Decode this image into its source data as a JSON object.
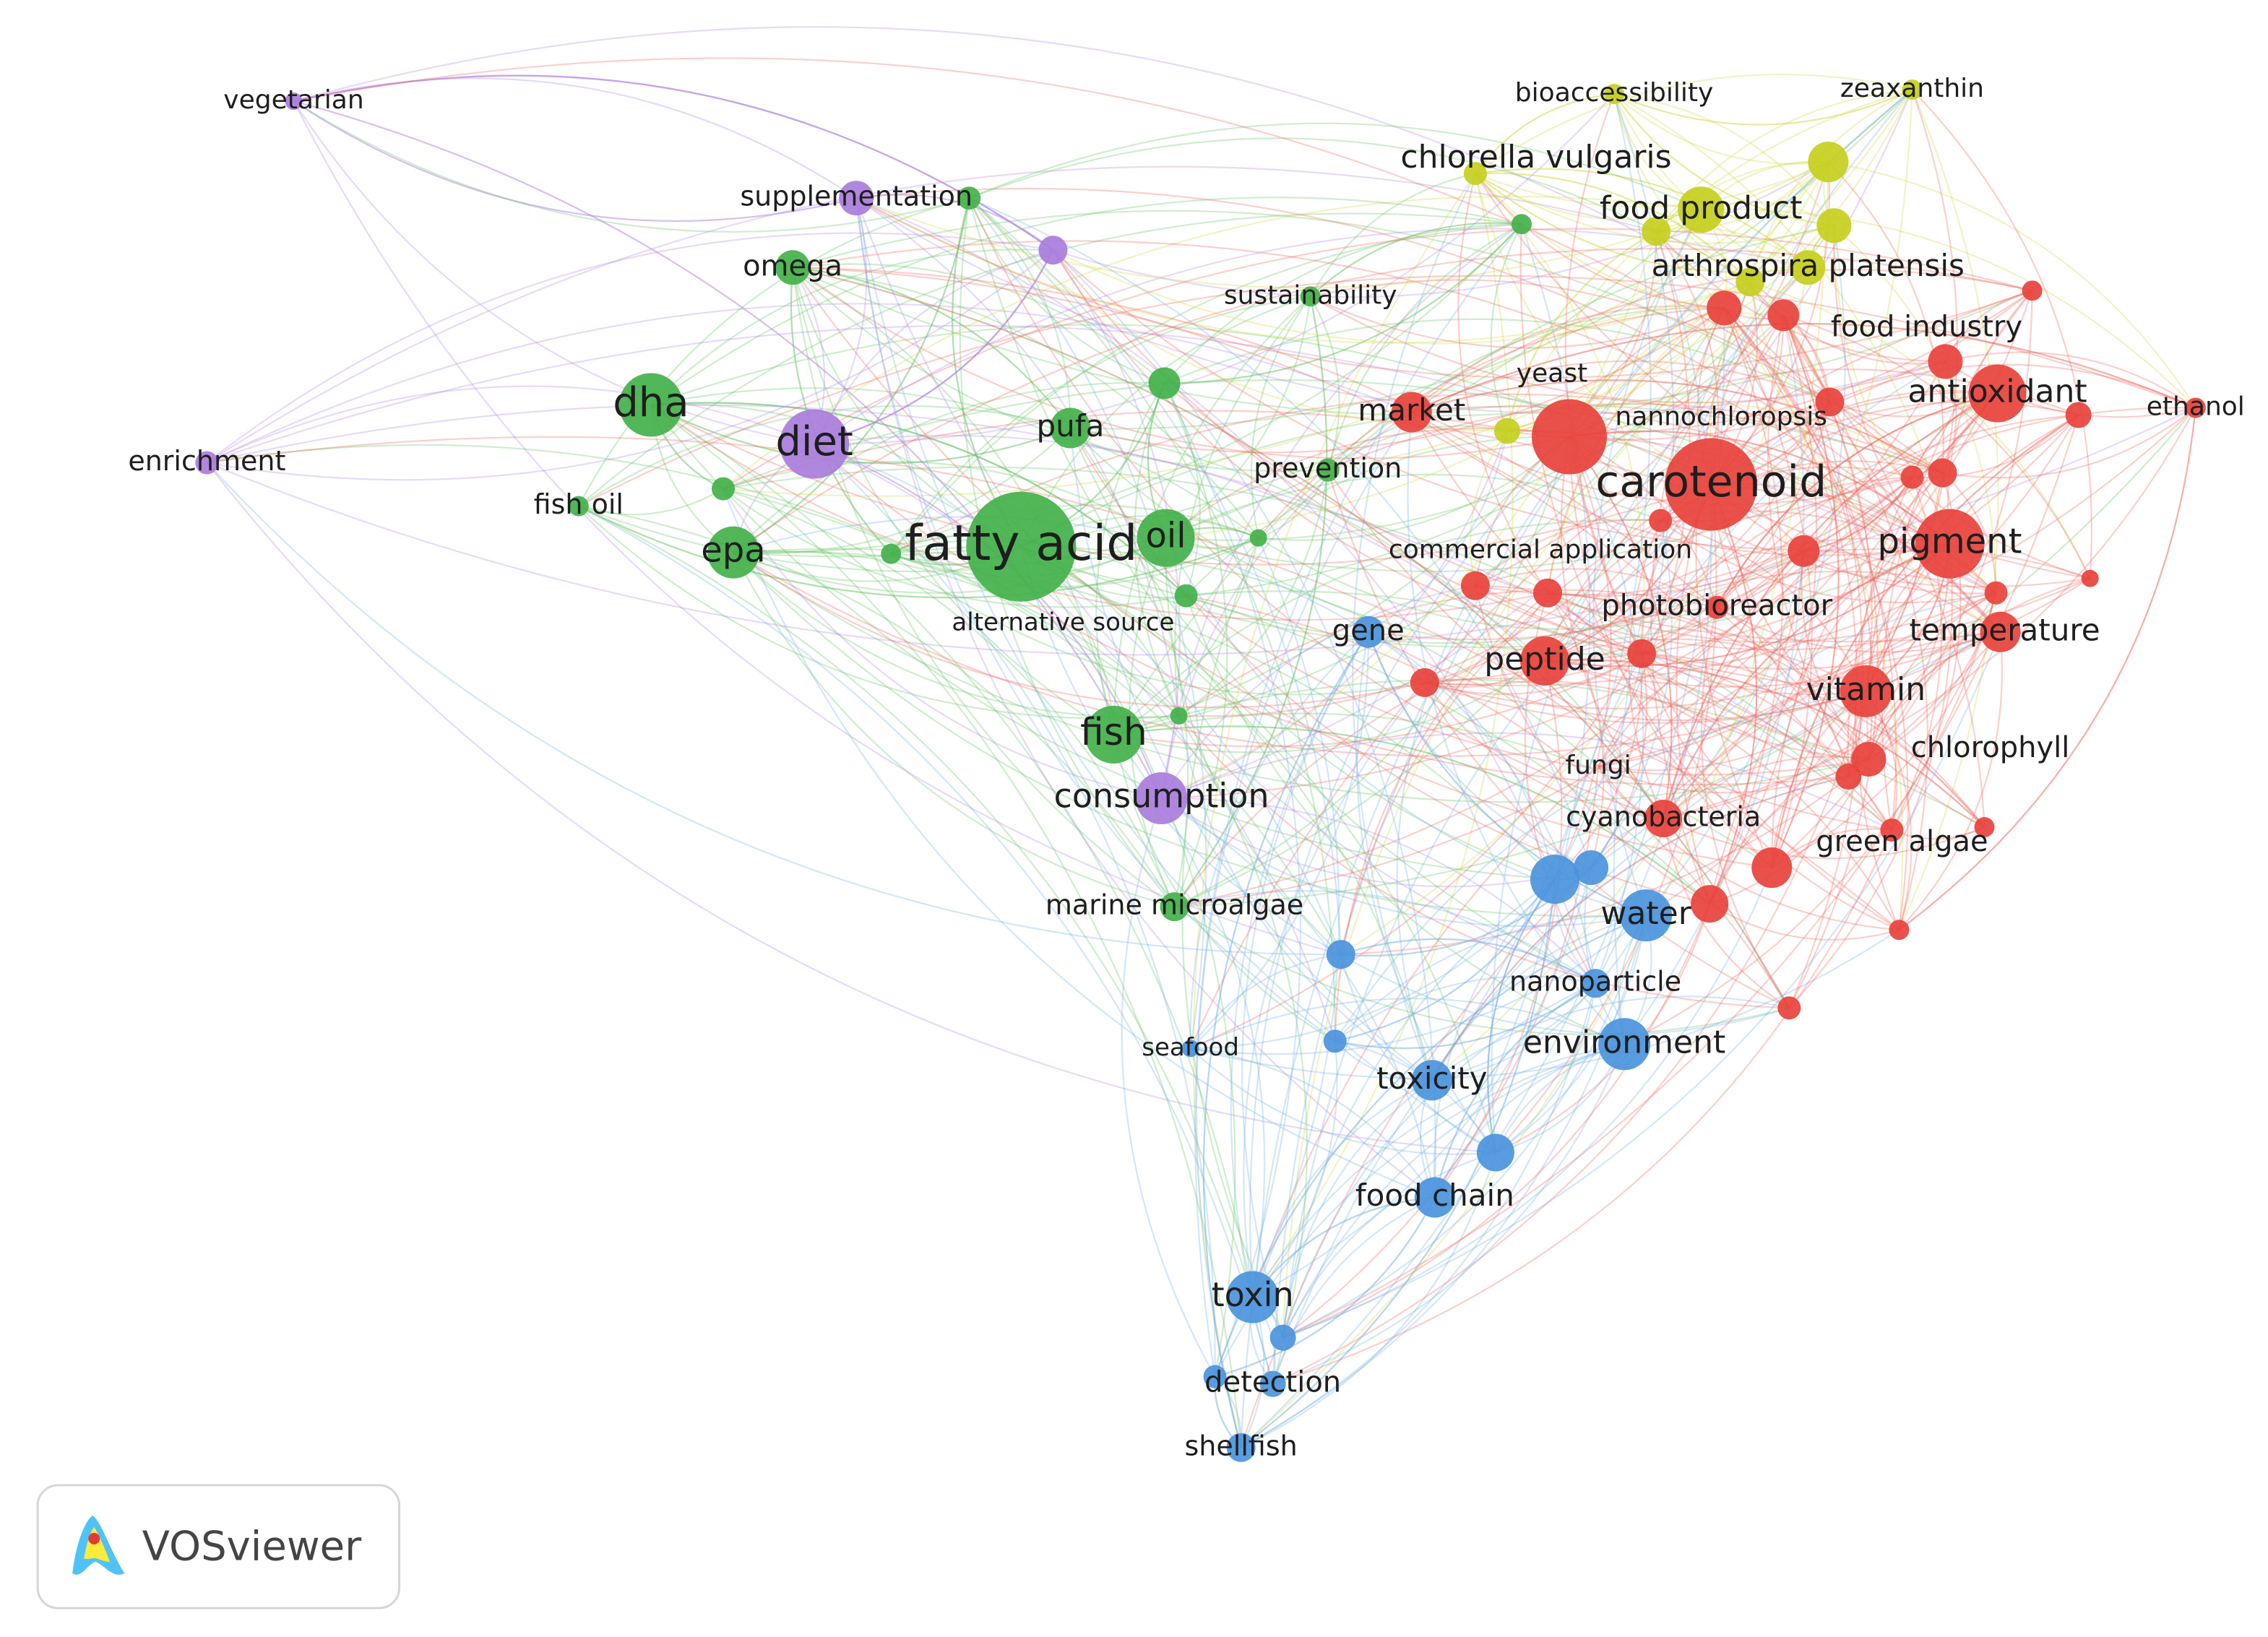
{
  "nodes": [
    "dha",
    "omega",
    "fish oil",
    "epa",
    "fatty acid",
    "oil",
    "pufa",
    "alternative source",
    "fish",
    "marine microalgae",
    "prevention",
    "sustainability",
    "vegetarian",
    "supplementation",
    "diet",
    "enrichment",
    "consumption",
    "bioaccessibility",
    "zeaxanthin",
    "chlorella vulgaris",
    "food product",
    "arthrospira platensis",
    "market",
    "yeast",
    "nannochloropsis",
    "carotenoid",
    "antioxidant",
    "ethanol",
    "food industry",
    "pigment",
    "temperature",
    "vitamin",
    "chlorophyll",
    "commercial application",
    "photobioreactor",
    "peptide",
    "fungi",
    "cyanobacteria",
    "green algae",
    "gene",
    "water",
    "nanoparticle",
    "environment",
    "toxicity",
    "food chain",
    "toxin",
    "detection",
    "shellfish",
    "seafood"
  ],
  "logo": {
    "text": "VOSviewer"
  }
}
